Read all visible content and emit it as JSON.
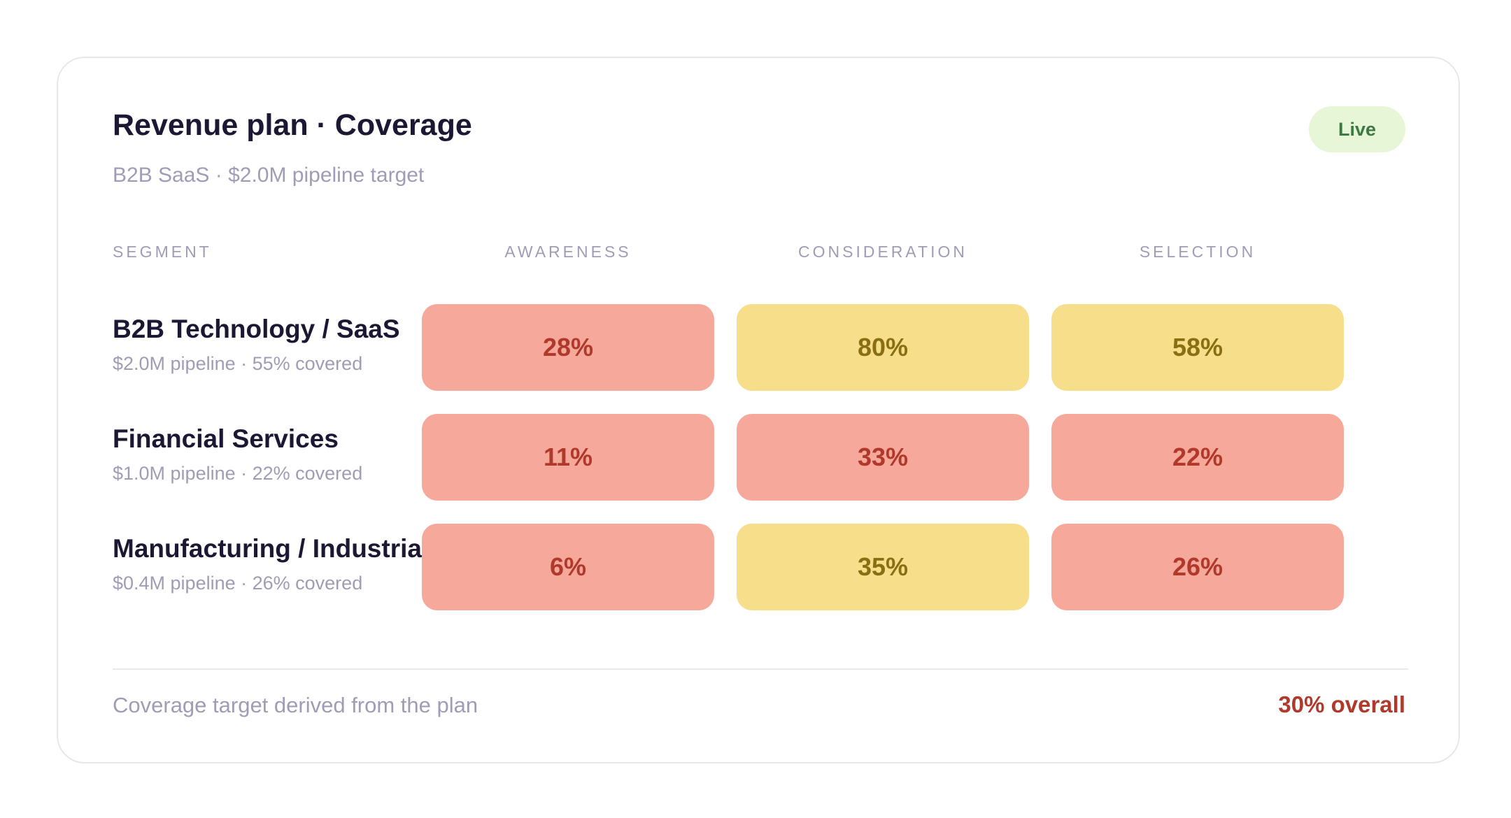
{
  "header": {
    "title": "Revenue plan · Coverage",
    "subtitle": "B2B SaaS · $2.0M pipeline target",
    "status_badge": "Live"
  },
  "table": {
    "columns": [
      "SEGMENT",
      "AWARENESS",
      "CONSIDERATION",
      "SELECTION"
    ],
    "rows": [
      {
        "name": "B2B Technology / SaaS",
        "detail": "$2.0M pipeline · 55% covered",
        "cells": [
          {
            "value": "28%",
            "level": "low"
          },
          {
            "value": "80%",
            "level": "mid"
          },
          {
            "value": "58%",
            "level": "mid"
          }
        ]
      },
      {
        "name": "Financial Services",
        "detail": "$1.0M pipeline · 22% covered",
        "cells": [
          {
            "value": "11%",
            "level": "low"
          },
          {
            "value": "33%",
            "level": "low"
          },
          {
            "value": "22%",
            "level": "low"
          }
        ]
      },
      {
        "name": "Manufacturing / Industrial",
        "detail": "$0.4M pipeline · 26% covered",
        "cells": [
          {
            "value": "6%",
            "level": "low"
          },
          {
            "value": "35%",
            "level": "mid"
          },
          {
            "value": "26%",
            "level": "low"
          }
        ]
      }
    ]
  },
  "footer": {
    "note": "Coverage target derived from the plan",
    "overall": "30% overall"
  },
  "colors": {
    "low_fill": "#f6a89b",
    "low_text": "#b0392b",
    "mid_fill": "#f6de8a",
    "mid_text": "#8a6f12",
    "badge_fill": "#e6f6d6",
    "badge_text": "#3d7a43"
  }
}
